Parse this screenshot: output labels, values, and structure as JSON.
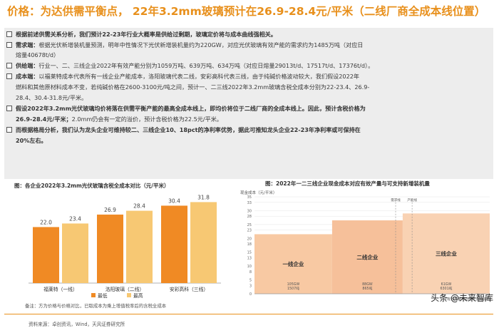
{
  "title": "价格：为达供需平衡点， 22年3.2mm玻璃预计在26.9-28.4元/平米（二线厂商全成本线位置）",
  "bullets": [
    {
      "pre": "",
      "bold": "根据前述供需关系分析，我们预计22-23年行业大概率是供给过剩期，玻璃定价将与成本曲线强相关。",
      "post": ""
    },
    {
      "pre": "",
      "bold": "需求端：",
      "post": "根据光伏新增装机量预测，明年中性情况下光伏新增装机量约为220GW，对应光伏玻璃有效产能的需求约为1485万吨（对应日"
    },
    {
      "pre": "",
      "bold": "",
      "post": "熔量40678t/d）"
    },
    {
      "pre": "",
      "bold": "供给端：",
      "post": "行业一、二、三线企业2022年有效产能分别为1059万吨、639万吨、634万吨（对应日熔量29013t/d、17517t/d、17376t/d）。"
    },
    {
      "pre": "",
      "bold": "成本端：",
      "post": "以福莱特成本代表所有一线企业产能成本，洛阳玻璃代表二线，安彩高科代表三线，由于纯碱价格波动较大，我们假设2022年"
    },
    {
      "pre": "",
      "bold": "",
      "post": "燃料和其他原材料成本不变，若纯碱价格在2600-3100元/吨之间，预计一、二三线2022年3.2mm玻璃含税全成本分别为22-23.4、26.9-"
    },
    {
      "pre": "",
      "bold": "",
      "post": "28.4、30.4-31.8元/平米。"
    },
    {
      "pre": "",
      "bold": "假设2022年3.2mm光伏玻璃均价将落在供需平衡产能的最高全成本线上，即均价将位于二线厂商的全成本线上。因此，预计含税价格为",
      "post": ""
    },
    {
      "pre": "",
      "bold": "26.9-28.4元/平米；",
      "post": "2.0mm仍会有一定的溢价，预计含税价格为22.5元/平米。"
    },
    {
      "pre": "",
      "bold": "而根据格局分析，我们认为龙头企业可维持较二、三线企业10、18pct的净利率优势，据此可推知龙头企业22-23年净利率或可保持在",
      "post": ""
    },
    {
      "pre": "",
      "bold": "20%左右。",
      "post": ""
    }
  ],
  "fig_left_title": "图：各企业2022年3.2mm光伏玻璃含税全成本对比（元/平米）",
  "fig_right_title": "图：2022年一二三线企业现金成本对应有效产量与可支持新增装机量",
  "chart_data": [
    {
      "type": "bar",
      "categories": [
        "福莱特（一线）",
        "洛阳玻璃（二线）",
        "安彩高科（三线）"
      ],
      "series": [
        {
          "name": "最低",
          "values": [
            22.0,
            26.9,
            30.4
          ],
          "color": "#F08A24"
        },
        {
          "name": "最高",
          "values": [
            23.4,
            28.4,
            31.8
          ],
          "color": "#F7C873"
        }
      ],
      "value_labels": [
        [
          "22.0",
          "26.9",
          "30.4"
        ],
        [
          "23.4",
          "28.4",
          "31.8"
        ]
      ],
      "ylim": [
        0,
        35
      ],
      "legend": "bottom"
    },
    {
      "type": "area",
      "ylabel": "现金成本（元/平米）",
      "yticks": [
        "0",
        "3",
        "5",
        "8",
        "10",
        "13",
        "15",
        "18",
        "20",
        "23",
        "25",
        "28",
        "30",
        "33",
        "35"
      ],
      "segments": [
        {
          "label": "一线企业",
          "cost": 21.5,
          "share": 0.33,
          "sub1": "105GW",
          "sub2": "1507吨"
        },
        {
          "label": "二线企业",
          "cost": 26.5,
          "share": 0.3,
          "sub1": "88GW",
          "sub2": "865吨"
        },
        {
          "label": "三线企业",
          "cost": 29.0,
          "share": 0.37,
          "sub1": "61GW",
          "sub2": "6301吨"
        }
      ],
      "markers": [
        "需求线",
        "产能线"
      ],
      "xlabel": "有效产量与对应可支持装机"
    }
  ],
  "note": "备注：方为价格与价格对比，已取成本为乘上增值税率后的含税全成本",
  "source": "资料来源：卓创资讯，Wind，天风证券研究所",
  "watermark": "头条 @未来智库"
}
